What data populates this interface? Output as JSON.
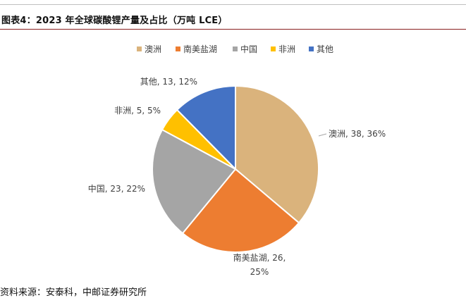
{
  "caption": "图表4：2023 年全球碳酸锂产量及占比（万吨 LCE）",
  "source": "资料来源：安泰科，中邮证券研究所",
  "chart_data": {
    "type": "pie",
    "categories": [
      "澳洲",
      "南美盐湖",
      "中国",
      "非洲",
      "其他"
    ],
    "values": [
      38,
      26,
      23,
      5,
      13
    ],
    "percents": [
      "36%",
      "25%",
      "22%",
      "5%",
      "12%"
    ],
    "colors": [
      "#dab37c",
      "#ed7d31",
      "#a5a5a5",
      "#ffc000",
      "#4472c4"
    ],
    "data_labels": [
      "澳洲, 38, 36%",
      "南美盐湖, 26,",
      "中国, 23, 22%",
      "非洲, 5, 5%",
      "其他, 13, 12%"
    ],
    "data_label_extra": "25%",
    "legend_position": "top"
  }
}
